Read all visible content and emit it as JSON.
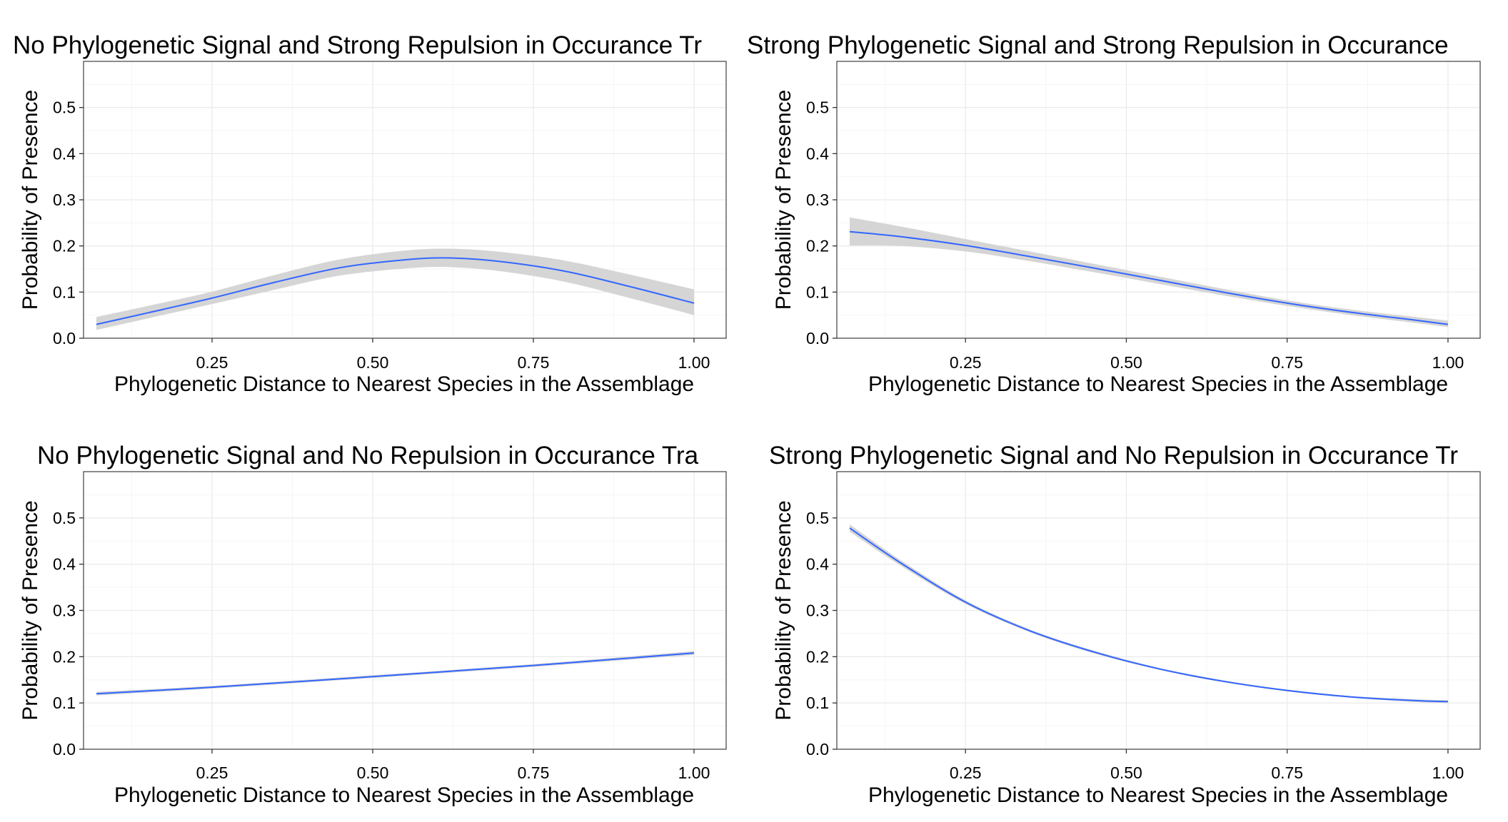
{
  "chart_data": [
    {
      "type": "line",
      "title": "No Phylogenetic Signal and Strong Repulsion in Occurance Tr",
      "xlabel": "Phylogenetic Distance to Nearest Species in the Assemblage",
      "ylabel": "Probability of Presence",
      "xlim": [
        0.05,
        1.05
      ],
      "ylim": [
        0.0,
        0.6
      ],
      "xticks": [
        "0.25",
        "0.50",
        "0.75",
        "1.00"
      ],
      "yticks": [
        "0.0",
        "0.1",
        "0.2",
        "0.3",
        "0.4",
        "0.5"
      ],
      "grid": true,
      "legend": "none",
      "colors": {
        "line": "#3366ff",
        "ribbon": "#d3d3d3"
      },
      "x": [
        0.07,
        0.15,
        0.25,
        0.35,
        0.45,
        0.55,
        0.62,
        0.7,
        0.8,
        0.9,
        1.0
      ],
      "y": [
        0.03,
        0.055,
        0.087,
        0.122,
        0.153,
        0.17,
        0.174,
        0.166,
        0.145,
        0.112,
        0.076
      ],
      "ymin": [
        0.018,
        0.043,
        0.074,
        0.106,
        0.136,
        0.151,
        0.154,
        0.145,
        0.122,
        0.087,
        0.05
      ],
      "ymax": [
        0.046,
        0.07,
        0.101,
        0.138,
        0.171,
        0.19,
        0.194,
        0.187,
        0.168,
        0.138,
        0.106
      ]
    },
    {
      "type": "line",
      "title": "Strong Phylogenetic Signal and Strong Repulsion in Occurance",
      "xlabel": "Phylogenetic Distance to Nearest Species in the Assemblage",
      "ylabel": "Probability of Presence",
      "xlim": [
        0.05,
        1.05
      ],
      "ylim": [
        0.0,
        0.6
      ],
      "xticks": [
        "0.25",
        "0.50",
        "0.75",
        "1.00"
      ],
      "yticks": [
        "0.0",
        "0.1",
        "0.2",
        "0.3",
        "0.4",
        "0.5"
      ],
      "grid": true,
      "legend": "none",
      "colors": {
        "line": "#3366ff",
        "ribbon": "#d3d3d3"
      },
      "x": [
        0.07,
        0.15,
        0.25,
        0.35,
        0.45,
        0.55,
        0.65,
        0.75,
        0.85,
        0.95,
        1.0
      ],
      "y": [
        0.231,
        0.22,
        0.201,
        0.177,
        0.152,
        0.126,
        0.1,
        0.076,
        0.056,
        0.039,
        0.03
      ],
      "ymin": [
        0.201,
        0.2,
        0.188,
        0.167,
        0.143,
        0.118,
        0.093,
        0.07,
        0.05,
        0.033,
        0.024
      ],
      "ymax": [
        0.262,
        0.242,
        0.215,
        0.188,
        0.161,
        0.134,
        0.107,
        0.082,
        0.062,
        0.046,
        0.038
      ]
    },
    {
      "type": "line",
      "title": "No Phylogenetic Signal and No Repulsion in Occurance Tra",
      "xlabel": "Phylogenetic Distance to Nearest Species in the Assemblage",
      "ylabel": "Probability of Presence",
      "xlim": [
        0.05,
        1.05
      ],
      "ylim": [
        0.0,
        0.6
      ],
      "xticks": [
        "0.25",
        "0.50",
        "0.75",
        "1.00"
      ],
      "yticks": [
        "0.0",
        "0.1",
        "0.2",
        "0.3",
        "0.4",
        "0.5"
      ],
      "grid": true,
      "legend": "none",
      "colors": {
        "line": "#3366ff",
        "ribbon": "#d3d3d3"
      },
      "x": [
        0.07,
        0.25,
        0.5,
        0.75,
        1.0
      ],
      "y": [
        0.12,
        0.134,
        0.157,
        0.181,
        0.208
      ],
      "ymin": [
        0.116,
        0.131,
        0.154,
        0.178,
        0.204
      ],
      "ymax": [
        0.124,
        0.137,
        0.16,
        0.184,
        0.212
      ]
    },
    {
      "type": "line",
      "title": "Strong Phylogenetic Signal and No Repulsion in Occurance Tr",
      "xlabel": "Phylogenetic Distance to Nearest Species in the Assemblage",
      "ylabel": "Probability of Presence",
      "xlim": [
        0.05,
        1.05
      ],
      "ylim": [
        0.0,
        0.6
      ],
      "xticks": [
        "0.25",
        "0.50",
        "0.75",
        "1.00"
      ],
      "yticks": [
        "0.0",
        "0.1",
        "0.2",
        "0.3",
        "0.4",
        "0.5"
      ],
      "grid": true,
      "legend": "none",
      "colors": {
        "line": "#3366ff",
        "ribbon": "#d3d3d3"
      },
      "x": [
        0.07,
        0.15,
        0.25,
        0.35,
        0.45,
        0.55,
        0.65,
        0.75,
        0.85,
        0.95,
        1.0
      ],
      "y": [
        0.478,
        0.402,
        0.318,
        0.256,
        0.21,
        0.174,
        0.147,
        0.127,
        0.113,
        0.105,
        0.103
      ],
      "ymin": [
        0.47,
        0.396,
        0.314,
        0.253,
        0.207,
        0.172,
        0.145,
        0.125,
        0.111,
        0.102,
        0.1
      ],
      "ymax": [
        0.486,
        0.408,
        0.322,
        0.259,
        0.213,
        0.176,
        0.149,
        0.129,
        0.115,
        0.108,
        0.106
      ]
    }
  ]
}
